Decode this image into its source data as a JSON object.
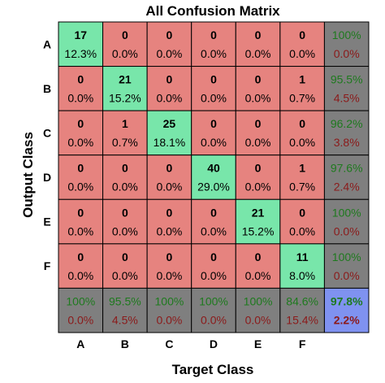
{
  "chart_data": {
    "type": "heatmap",
    "title": "All Confusion Matrix",
    "xlabel": "Target Class",
    "ylabel": "Output Class",
    "classes": [
      "A",
      "B",
      "C",
      "D",
      "E",
      "F"
    ],
    "cells": [
      [
        {
          "count": "17",
          "pct": "12.3%"
        },
        {
          "count": "0",
          "pct": "0.0%"
        },
        {
          "count": "0",
          "pct": "0.0%"
        },
        {
          "count": "0",
          "pct": "0.0%"
        },
        {
          "count": "0",
          "pct": "0.0%"
        },
        {
          "count": "0",
          "pct": "0.0%"
        }
      ],
      [
        {
          "count": "0",
          "pct": "0.0%"
        },
        {
          "count": "21",
          "pct": "15.2%"
        },
        {
          "count": "0",
          "pct": "0.0%"
        },
        {
          "count": "0",
          "pct": "0.0%"
        },
        {
          "count": "0",
          "pct": "0.0%"
        },
        {
          "count": "1",
          "pct": "0.7%"
        }
      ],
      [
        {
          "count": "0",
          "pct": "0.0%"
        },
        {
          "count": "1",
          "pct": "0.7%"
        },
        {
          "count": "25",
          "pct": "18.1%"
        },
        {
          "count": "0",
          "pct": "0.0%"
        },
        {
          "count": "0",
          "pct": "0.0%"
        },
        {
          "count": "0",
          "pct": "0.0%"
        }
      ],
      [
        {
          "count": "0",
          "pct": "0.0%"
        },
        {
          "count": "0",
          "pct": "0.0%"
        },
        {
          "count": "0",
          "pct": "0.0%"
        },
        {
          "count": "40",
          "pct": "29.0%"
        },
        {
          "count": "0",
          "pct": "0.0%"
        },
        {
          "count": "1",
          "pct": "0.7%"
        }
      ],
      [
        {
          "count": "0",
          "pct": "0.0%"
        },
        {
          "count": "0",
          "pct": "0.0%"
        },
        {
          "count": "0",
          "pct": "0.0%"
        },
        {
          "count": "0",
          "pct": "0.0%"
        },
        {
          "count": "21",
          "pct": "15.2%"
        },
        {
          "count": "0",
          "pct": "0.0%"
        }
      ],
      [
        {
          "count": "0",
          "pct": "0.0%"
        },
        {
          "count": "0",
          "pct": "0.0%"
        },
        {
          "count": "0",
          "pct": "0.0%"
        },
        {
          "count": "0",
          "pct": "0.0%"
        },
        {
          "count": "0",
          "pct": "0.0%"
        },
        {
          "count": "11",
          "pct": "8.0%"
        }
      ]
    ],
    "row_summary": [
      {
        "correct": "100%",
        "error": "0.0%"
      },
      {
        "correct": "95.5%",
        "error": "4.5%"
      },
      {
        "correct": "96.2%",
        "error": "3.8%"
      },
      {
        "correct": "97.6%",
        "error": "2.4%"
      },
      {
        "correct": "100%",
        "error": "0.0%"
      },
      {
        "correct": "100%",
        "error": "0.0%"
      }
    ],
    "col_summary": [
      {
        "correct": "100%",
        "error": "0.0%"
      },
      {
        "correct": "95.5%",
        "error": "4.5%"
      },
      {
        "correct": "100%",
        "error": "0.0%"
      },
      {
        "correct": "100%",
        "error": "0.0%"
      },
      {
        "correct": "100%",
        "error": "0.0%"
      },
      {
        "correct": "84.6%",
        "error": "15.4%"
      }
    ],
    "total": {
      "correct": "97.8%",
      "error": "2.2%"
    },
    "colors": {
      "correct_cell": "#78e6aa",
      "wrong_cell": "#e6837f",
      "summary_cell": "#7f7f7f",
      "total_cell": "#7f92f0",
      "summary_good_text": "#1e7a1e",
      "summary_bad_text": "#8b1a1a"
    }
  }
}
